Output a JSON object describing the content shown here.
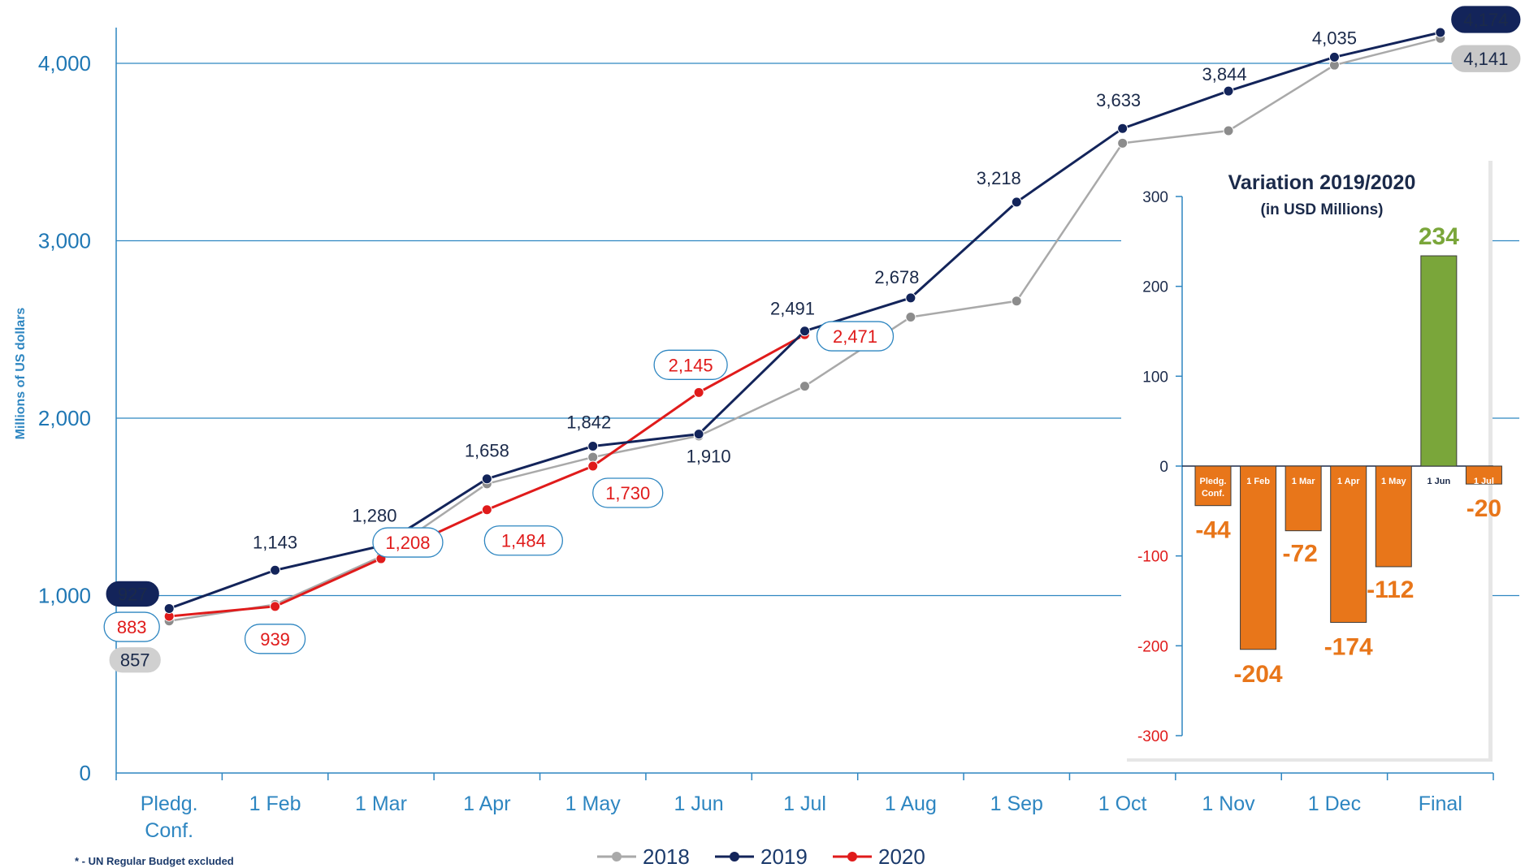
{
  "chart_data": [
    {
      "type": "line",
      "ylabel": "Millions of US dollars",
      "ylim": [
        0,
        4200
      ],
      "yticks": [
        "0",
        "1,000",
        "2,000",
        "3,000",
        "4,000"
      ],
      "ytick_values": [
        0,
        1000,
        2000,
        3000,
        4000
      ],
      "categories": [
        "Pledg.\nConf.",
        "1 Feb",
        "1 Mar",
        "1 Apr",
        "1 May",
        "1 Jun",
        "1 Jul",
        "1 Aug",
        "1 Sep",
        "1 Oct",
        "1 Nov",
        "1 Dec",
        "Final"
      ],
      "grid": "horizontal",
      "legend_position": "bottom-center",
      "series": [
        {
          "name": "2018",
          "color": "#a9a9a9",
          "marker_color": "#8c8c8c",
          "values": [
            857,
            950,
            1220,
            1630,
            1780,
            1900,
            2180,
            2570,
            2660,
            3550,
            3620,
            3990,
            4141
          ]
        },
        {
          "name": "2019",
          "color": "#13245a",
          "marker_color": "#13245a",
          "values": [
            927,
            1143,
            1280,
            1658,
            1842,
            1910,
            2491,
            2678,
            3218,
            3633,
            3844,
            4035,
            4174
          ]
        },
        {
          "name": "2020",
          "color": "#e01b1b",
          "marker_color": "#e01b1b",
          "values": [
            883,
            939,
            1208,
            1484,
            1730,
            2145,
            2471,
            null,
            null,
            null,
            null,
            null,
            null
          ]
        }
      ],
      "labels_2019": [
        {
          "i": 0,
          "text": "927",
          "style": "pill"
        },
        {
          "i": 1,
          "text": "1,143"
        },
        {
          "i": 2,
          "text": "1,280"
        },
        {
          "i": 3,
          "text": "1,658"
        },
        {
          "i": 4,
          "text": "1,842"
        },
        {
          "i": 5,
          "text": "1,910",
          "below": true
        },
        {
          "i": 6,
          "text": "2,491"
        },
        {
          "i": 7,
          "text": "2,678"
        },
        {
          "i": 8,
          "text": "3,218"
        },
        {
          "i": 9,
          "text": "3,633"
        },
        {
          "i": 10,
          "text": "3,844"
        },
        {
          "i": 11,
          "text": "4,035"
        },
        {
          "i": 12,
          "text": "4,174",
          "style": "pill"
        }
      ],
      "labels_2018": [
        {
          "i": 0,
          "text": "857",
          "style": "pill-gray"
        },
        {
          "i": 12,
          "text": "4,141",
          "style": "pill-gray"
        }
      ],
      "labels_2020": [
        {
          "i": 0,
          "text": "883"
        },
        {
          "i": 1,
          "text": "939"
        },
        {
          "i": 2,
          "text": "1,208"
        },
        {
          "i": 3,
          "text": "1,484"
        },
        {
          "i": 4,
          "text": "1,730"
        },
        {
          "i": 5,
          "text": "2,145"
        },
        {
          "i": 6,
          "text": "2,471"
        }
      ]
    },
    {
      "type": "bar",
      "title": "Variation 2019/2020",
      "subtitle": "(in USD Millions)",
      "categories": [
        "Pledg.\nConf.",
        "1 Feb",
        "1 Mar",
        "1 Apr",
        "1 May",
        "1 Jun",
        "1 Jul"
      ],
      "values": [
        -44,
        -204,
        -72,
        -174,
        -112,
        234,
        -20
      ],
      "value_labels": [
        "-44",
        "-204",
        "-72",
        "-174",
        "-112",
        "234",
        "-20"
      ],
      "ylim": [
        -300,
        300
      ],
      "yticks": [
        "300",
        "200",
        "100",
        "0",
        "-100",
        "-200",
        "-300"
      ],
      "ytick_values": [
        300,
        200,
        100,
        0,
        -100,
        -200,
        -300
      ],
      "colors": {
        "negative": "#e8761a",
        "positive": "#7aa63a"
      }
    }
  ],
  "legend": [
    {
      "name": "2018",
      "color": "#a9a9a9"
    },
    {
      "name": "2019",
      "color": "#13245a"
    },
    {
      "name": "2020",
      "color": "#e01b1b"
    }
  ],
  "footnote": "* - UN Regular Budget excluded"
}
